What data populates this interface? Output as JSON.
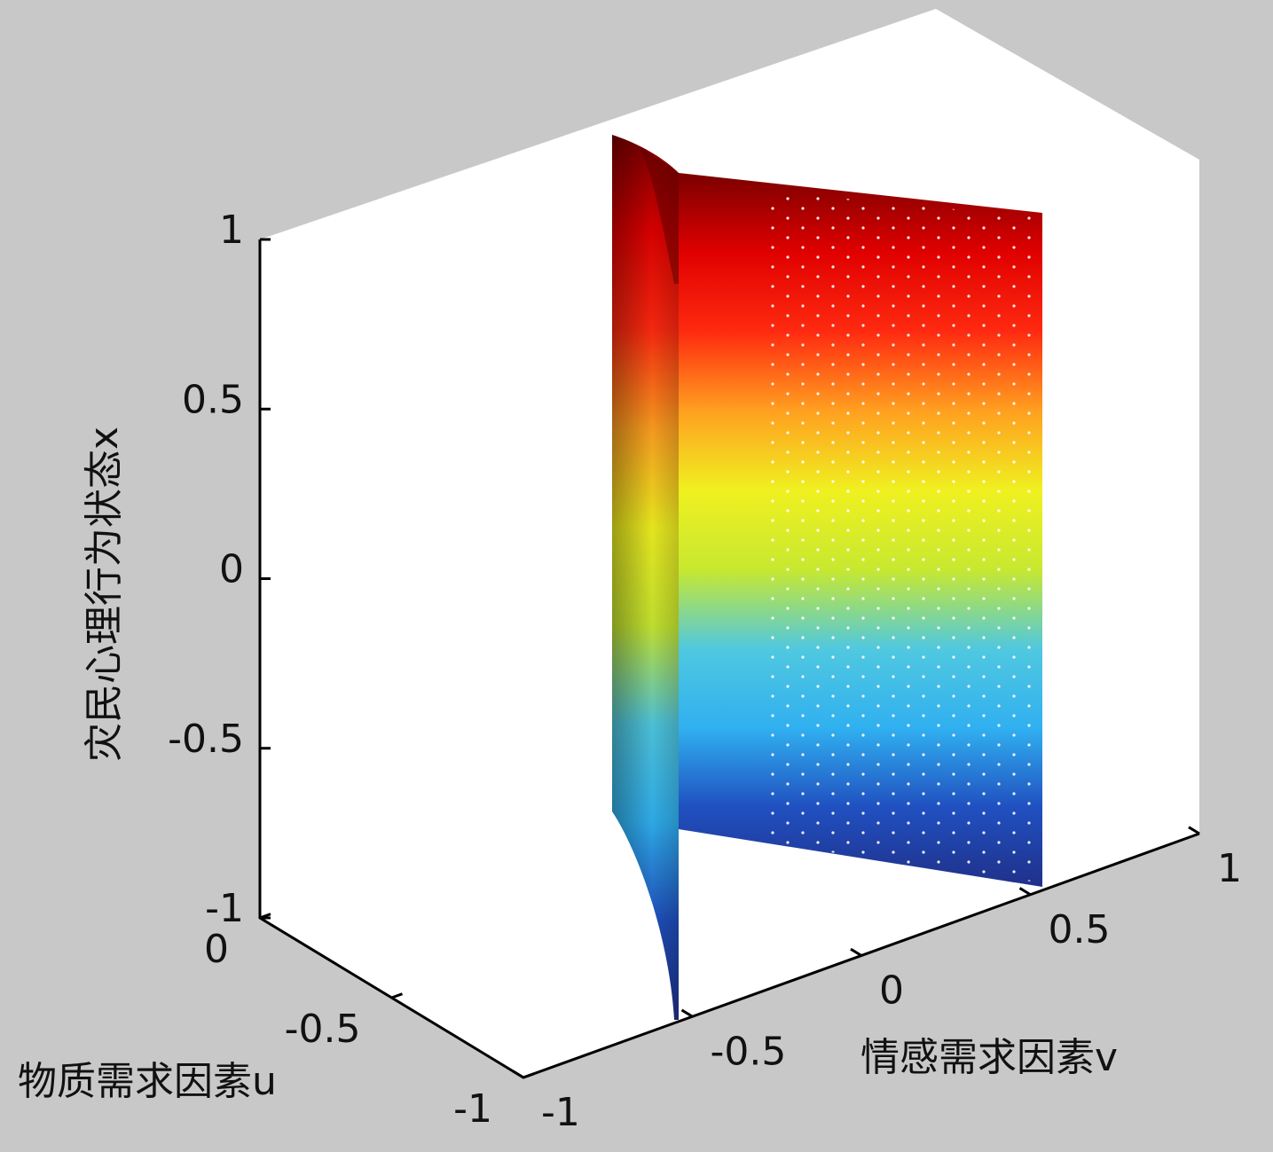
{
  "chart_data": {
    "type": "surface",
    "xlabel": "物质需求因素u",
    "ylabel": "情感需求因素v",
    "zlabel": "灾民心理行为状态x",
    "xlim": [
      -1,
      0
    ],
    "xticks": [
      -1,
      -0.5,
      0
    ],
    "ylim": [
      -1,
      1
    ],
    "yticks": [
      -1,
      -0.5,
      0,
      0.5,
      1
    ],
    "zlim": [
      -1,
      1
    ],
    "zticks": [
      -1,
      -0.5,
      0,
      0.5,
      1
    ],
    "colormap": "jet"
  }
}
